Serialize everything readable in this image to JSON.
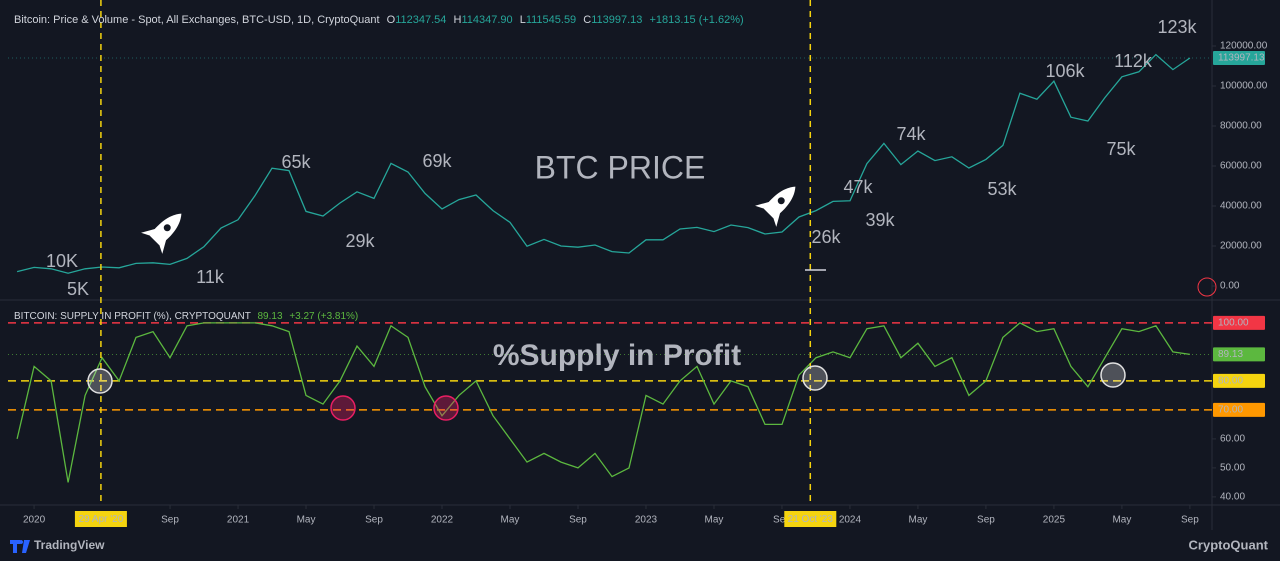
{
  "chart_data": [
    {
      "type": "line",
      "title": "Bitcoin: Price & Volume - Spot, All Exchanges, BTC-USD, 1D, CryptoQuant",
      "ohlc": [
        {
          "label": "O",
          "value": "112347.54"
        },
        {
          "label": "H",
          "value": "114347.90"
        },
        {
          "label": "L",
          "value": "111545.59"
        }
      ],
      "close_label": "C",
      "change": "+1813.15 (+1.62%)",
      "x": [
        "2019-12",
        "2020-01",
        "2020-02",
        "2020-03",
        "2020-04",
        "2020-05",
        "2020-06",
        "2020-07",
        "2020-08",
        "2020-09",
        "2020-10",
        "2020-11",
        "2020-12",
        "2021-01",
        "2021-02",
        "2021-03",
        "2021-04",
        "2021-05",
        "2021-06",
        "2021-07",
        "2021-08",
        "2021-09",
        "2021-10",
        "2021-11",
        "2021-12",
        "2022-01",
        "2022-02",
        "2022-03",
        "2022-04",
        "2022-05",
        "2022-06",
        "2022-07",
        "2022-08",
        "2022-09",
        "2022-10",
        "2022-11",
        "2022-12",
        "2023-01",
        "2023-02",
        "2023-03",
        "2023-04",
        "2023-05",
        "2023-06",
        "2023-07",
        "2023-08",
        "2023-09",
        "2023-10",
        "2023-11",
        "2023-12",
        "2024-01",
        "2024-02",
        "2024-03",
        "2024-04",
        "2024-05",
        "2024-06",
        "2024-07",
        "2024-08",
        "2024-09",
        "2024-10",
        "2024-11",
        "2024-12",
        "2025-01",
        "2025-02",
        "2025-03",
        "2025-04",
        "2025-05",
        "2025-06",
        "2025-07",
        "2025-08",
        "2025-09"
      ],
      "series": [
        {
          "name": "BTC-USD",
          "color": "#26a69a",
          "values": [
            7200,
            9300,
            8600,
            6400,
            8600,
            9500,
            9100,
            11300,
            11600,
            10800,
            13800,
            19700,
            29000,
            33100,
            45200,
            58900,
            57700,
            37300,
            35000,
            41500,
            47100,
            43800,
            61300,
            57000,
            46300,
            38500,
            43200,
            45500,
            37700,
            31800,
            19900,
            23300,
            20000,
            19400,
            20500,
            17200,
            16500,
            23100,
            23100,
            28500,
            29300,
            27200,
            30500,
            29200,
            26000,
            27000,
            34500,
            37700,
            42300,
            42600,
            61200,
            71300,
            60700,
            67500,
            62700,
            64600,
            59000,
            63300,
            70300,
            96400,
            93400,
            102400,
            84400,
            82500,
            94200,
            104600,
            107100,
            115700,
            108200,
            113997.13
          ]
        }
      ],
      "xlim": [
        "2019-11-15",
        "2025-10-10"
      ],
      "ylim": [
        -7000,
        143000
      ],
      "yticks": [
        {
          "value": 0,
          "label": "0.00"
        },
        {
          "value": 20000,
          "label": "20000.00"
        },
        {
          "value": 40000,
          "label": "40000.00"
        },
        {
          "value": 60000,
          "label": "60000.00"
        },
        {
          "value": 80000,
          "label": "80000.00"
        },
        {
          "value": 100000,
          "label": "100000.00"
        },
        {
          "value": 120000,
          "label": "120000.00"
        }
      ],
      "annotations": [
        "10K",
        "5K",
        "11k",
        "65k",
        "29k",
        "69k",
        "BTC PRICE",
        "26k",
        "47k",
        "39k",
        "74k",
        "53k",
        "106k",
        "75k",
        "112k",
        "123k"
      ]
    },
    {
      "type": "line",
      "title": "BITCOIN: SUPPLY IN PROFIT (%), CRYPTOQUANT",
      "change": "+3.27 (+3.81%)",
      "x": [
        "2019-12",
        "2020-01",
        "2020-02",
        "2020-03",
        "2020-04",
        "2020-05",
        "2020-06",
        "2020-07",
        "2020-08",
        "2020-09",
        "2020-10",
        "2020-11",
        "2020-12",
        "2021-01",
        "2021-02",
        "2021-03",
        "2021-04",
        "2021-05",
        "2021-06",
        "2021-07",
        "2021-08",
        "2021-09",
        "2021-10",
        "2021-11",
        "2021-12",
        "2022-01",
        "2022-02",
        "2022-03",
        "2022-04",
        "2022-05",
        "2022-06",
        "2022-07",
        "2022-08",
        "2022-09",
        "2022-10",
        "2022-11",
        "2022-12",
        "2023-01",
        "2023-02",
        "2023-03",
        "2023-04",
        "2023-05",
        "2023-06",
        "2023-07",
        "2023-08",
        "2023-09",
        "2023-10",
        "2023-11",
        "2023-12",
        "2024-01",
        "2024-02",
        "2024-03",
        "2024-04",
        "2024-05",
        "2024-06",
        "2024-07",
        "2024-08",
        "2024-09",
        "2024-10",
        "2024-11",
        "2024-12",
        "2025-01",
        "2025-02",
        "2025-03",
        "2025-04",
        "2025-05",
        "2025-06",
        "2025-07",
        "2025-08",
        "2025-09"
      ],
      "series": [
        {
          "name": "Supply in Profit",
          "color": "#5cb83f",
          "values": [
            60,
            85,
            80,
            45,
            75,
            88,
            80,
            95,
            97,
            88,
            99,
            100,
            100,
            100,
            100,
            99,
            97,
            75,
            72,
            80,
            92,
            85,
            99,
            95,
            78,
            68,
            75,
            80,
            68,
            60,
            52,
            55,
            52,
            50,
            55,
            47,
            50,
            75,
            72,
            80,
            85,
            72,
            80,
            78,
            65,
            65,
            82,
            88,
            90,
            88,
            98,
            99,
            88,
            93,
            85,
            88,
            75,
            80,
            95,
            100,
            97,
            98,
            85,
            78,
            88,
            98,
            97,
            99,
            90,
            89.13
          ]
        }
      ],
      "xlim": [
        "2019-11-15",
        "2025-10-10"
      ],
      "ylim": [
        37.2,
        107.9
      ],
      "yticks": [
        {
          "value": 40,
          "label": "40.00"
        },
        {
          "value": 50,
          "label": "50.00"
        },
        {
          "value": 60,
          "label": "60.00"
        }
      ],
      "reference_lines": [
        {
          "value": 100,
          "label": "100.00",
          "color": "#f23645"
        },
        {
          "value": 80,
          "label": "80.00",
          "color": "#f5d40f"
        },
        {
          "value": 70,
          "label": "70.00",
          "color": "#ff9800"
        }
      ],
      "markers": [
        {
          "x": "2020-04-29",
          "label": "29 Apr '20"
        },
        {
          "x": "2023-10-21",
          "label": "21 Oct '23"
        }
      ],
      "xticks": [
        {
          "value": "2020-01",
          "label": "2020"
        },
        {
          "value": "2020-09",
          "label": "Sep"
        },
        {
          "value": "2021-01",
          "label": "2021"
        },
        {
          "value": "2021-05",
          "label": "May"
        },
        {
          "value": "2021-09",
          "label": "Sep"
        },
        {
          "value": "2022-01",
          "label": "2022"
        },
        {
          "value": "2022-05",
          "label": "May"
        },
        {
          "value": "2022-09",
          "label": "Sep"
        },
        {
          "value": "2023-01",
          "label": "2023"
        },
        {
          "value": "2023-05",
          "label": "May"
        },
        {
          "value": "2023-09",
          "label": "Sep"
        },
        {
          "value": "2024-01",
          "label": "2024"
        },
        {
          "value": "2024-05",
          "label": "May"
        },
        {
          "value": "2024-09",
          "label": "Sep"
        },
        {
          "value": "2025-01",
          "label": "2025"
        },
        {
          "value": "2025-05",
          "label": "May"
        },
        {
          "value": "2025-09",
          "label": "Sep"
        }
      ],
      "annotations": [
        "%Supply in Profit"
      ]
    }
  ],
  "footer": {
    "left": "TradingView",
    "right": "CryptoQuant"
  }
}
